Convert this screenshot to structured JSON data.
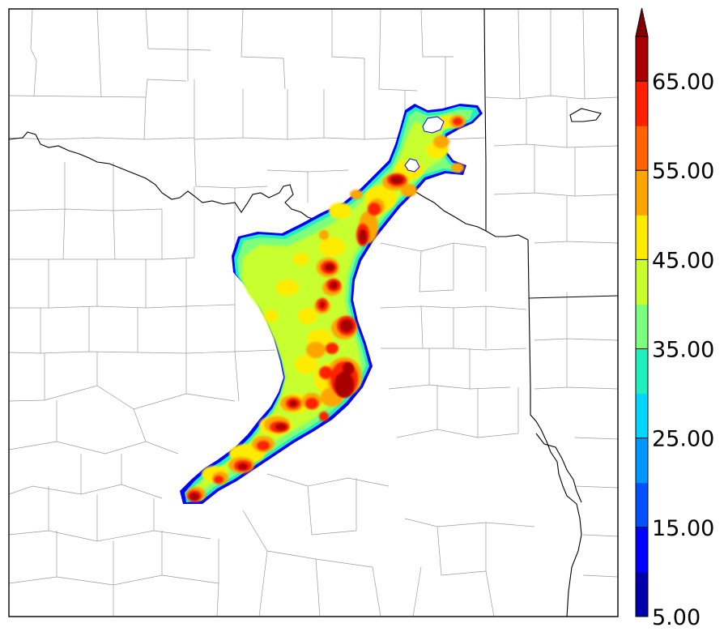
{
  "colorbar": {
    "bins": [
      {
        "min": 5,
        "color": "#0000a8"
      },
      {
        "min": 10,
        "color": "#0000ff"
      },
      {
        "min": 15,
        "color": "#0050ff"
      },
      {
        "min": 20,
        "color": "#0096ff"
      },
      {
        "min": 25,
        "color": "#00d7ff"
      },
      {
        "min": 30,
        "color": "#20f0c0"
      },
      {
        "min": 35,
        "color": "#7dff7d"
      },
      {
        "min": 40,
        "color": "#c8ff2d"
      },
      {
        "min": 45,
        "color": "#ffeb00"
      },
      {
        "min": 50,
        "color": "#ffa500"
      },
      {
        "min": 55,
        "color": "#ff6400"
      },
      {
        "min": 60,
        "color": "#ff2000"
      },
      {
        "min": 65,
        "color": "#a80000"
      }
    ],
    "extend_color": "#800000",
    "tick_labels": [
      "5.00",
      "15.00",
      "25.00",
      "35.00",
      "45.00",
      "55.00",
      "65.00"
    ]
  },
  "map": {
    "background": "#ffffff",
    "state_line_color": "#000000",
    "county_line_color": "#9a9a9a"
  }
}
